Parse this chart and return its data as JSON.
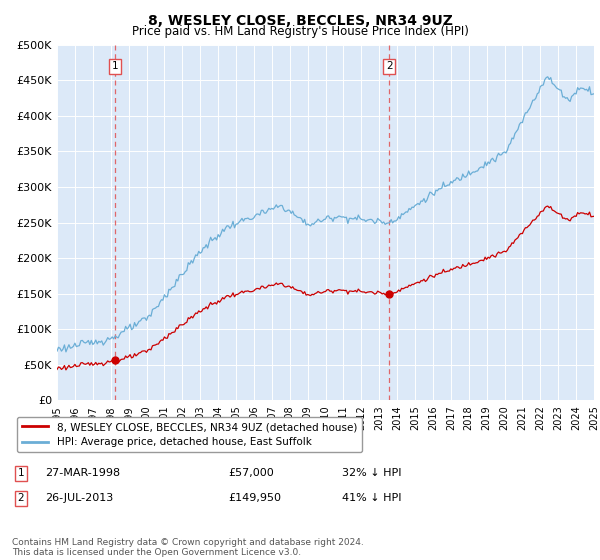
{
  "title": "8, WESLEY CLOSE, BECCLES, NR34 9UZ",
  "subtitle": "Price paid vs. HM Land Registry's House Price Index (HPI)",
  "ylim": [
    0,
    500000
  ],
  "yticks": [
    0,
    50000,
    100000,
    150000,
    200000,
    250000,
    300000,
    350000,
    400000,
    450000,
    500000
  ],
  "ytick_labels": [
    "£0",
    "£50K",
    "£100K",
    "£150K",
    "£200K",
    "£250K",
    "£300K",
    "£350K",
    "£400K",
    "£450K",
    "£500K"
  ],
  "hpi_color": "#6baed6",
  "price_color": "#cc0000",
  "dashed_color": "#e05050",
  "bg_color": "#dce9f8",
  "grid_color": "#ffffff",
  "sale1_year": 1998.23,
  "sale1_price": 57000,
  "sale2_year": 2013.57,
  "sale2_price": 149950,
  "marker1_label": "27-MAR-1998",
  "marker1_price_str": "£57,000",
  "marker1_hpi_str": "32% ↓ HPI",
  "marker2_label": "26-JUL-2013",
  "marker2_price_str": "£149,950",
  "marker2_hpi_str": "41% ↓ HPI",
  "legend_line1": "8, WESLEY CLOSE, BECCLES, NR34 9UZ (detached house)",
  "legend_line2": "HPI: Average price, detached house, East Suffolk",
  "footer": "Contains HM Land Registry data © Crown copyright and database right 2024.\nThis data is licensed under the Open Government Licence v3.0.",
  "x_start_year": 1995,
  "x_end_year": 2025
}
